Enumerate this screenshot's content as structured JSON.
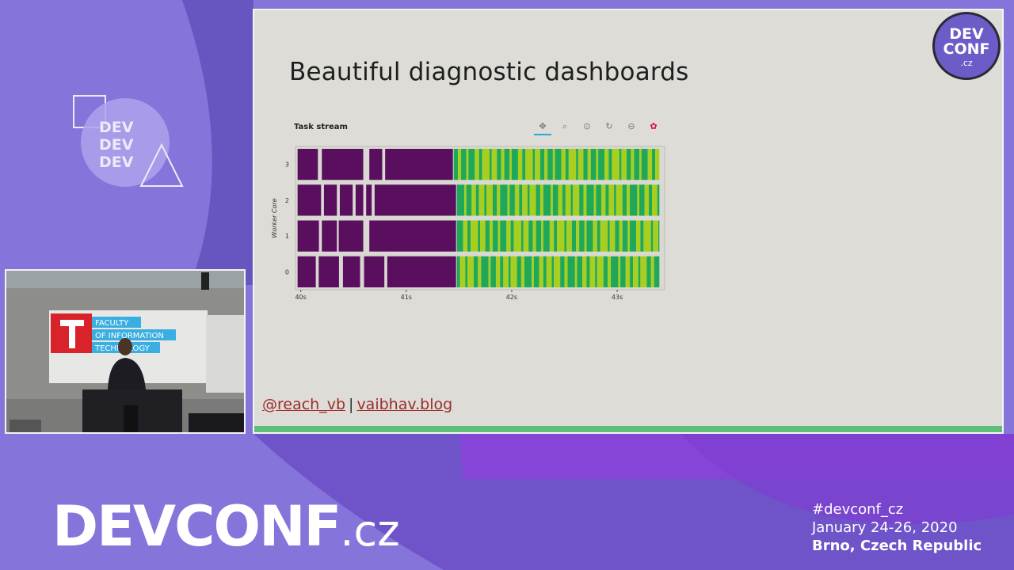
{
  "slide": {
    "title": "Beautiful diagnostic dashboards",
    "links": {
      "twitter": "@reach_vb",
      "separator": "|",
      "blog": "vaibhav.blog"
    },
    "badge": {
      "line1": "DEV",
      "line2": "CONF",
      "line3": ".cz"
    }
  },
  "toolbar": {
    "tools": [
      "pan-icon",
      "box-zoom-icon",
      "wheel-zoom-icon",
      "reset-icon",
      "save-icon",
      "bokeh-logo-icon"
    ]
  },
  "chart_data": {
    "type": "bar",
    "title": "Task stream",
    "ylabel": "Worker Core",
    "xlabel": "",
    "y_categories": [
      "0",
      "1",
      "2",
      "3"
    ],
    "x_ticks": [
      "40s",
      "41s",
      "42s",
      "43s"
    ],
    "xlim": [
      39.95,
      43.45
    ],
    "series_colors": {
      "transfer": "#5a0f5e",
      "compute_green": "#1fa85a",
      "compute_lime": "#a8cf1f"
    },
    "rows": [
      {
        "core": "3",
        "purple": [
          [
            39.97,
            40.17
          ],
          [
            40.2,
            40.6
          ],
          [
            40.65,
            40.78
          ],
          [
            40.8,
            41.45
          ]
        ],
        "compute_start": 41.45,
        "compute_end": 43.4
      },
      {
        "core": "2",
        "purple": [
          [
            39.97,
            40.2
          ],
          [
            40.22,
            40.35
          ],
          [
            40.37,
            40.5
          ],
          [
            40.52,
            40.6
          ],
          [
            40.62,
            40.68
          ],
          [
            40.7,
            41.48
          ]
        ],
        "compute_start": 41.48,
        "compute_end": 43.4
      },
      {
        "core": "1",
        "purple": [
          [
            39.97,
            40.18
          ],
          [
            40.2,
            40.35
          ],
          [
            40.36,
            40.6
          ],
          [
            40.65,
            41.48
          ]
        ],
        "compute_start": 41.48,
        "compute_end": 43.4
      },
      {
        "core": "0",
        "purple": [
          [
            39.97,
            40.15
          ],
          [
            40.17,
            40.37
          ],
          [
            40.4,
            40.57
          ],
          [
            40.6,
            40.8
          ],
          [
            40.82,
            41.48
          ]
        ],
        "compute_start": 41.48,
        "compute_end": 43.4
      }
    ]
  },
  "video": {
    "sign_line1": "FACULTY",
    "sign_line2": "OF INFORMATION",
    "sign_line3": "TECHNOLOGY"
  },
  "footer": {
    "brand_main": "DEVCONF",
    "brand_suffix": ".cz",
    "hashtag": "#devconf_cz",
    "dates": "January 24-26, 2020",
    "location": "Brno, Czech Republic"
  }
}
